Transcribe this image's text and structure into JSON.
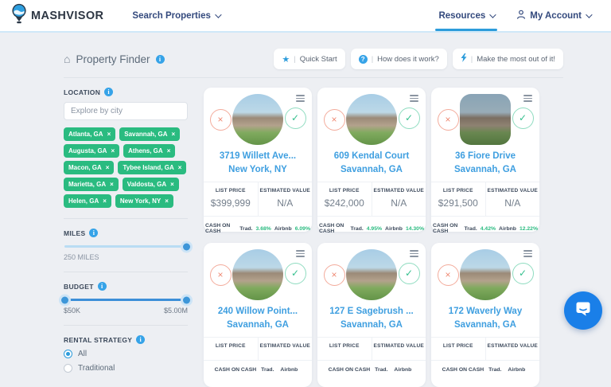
{
  "colors": {
    "accent_blue": "#2d9cdb",
    "tag_green": "#2abb80",
    "coral": "#ef8a74",
    "nav_navy": "#33497d"
  },
  "navbar": {
    "brand": "MASHVISOR",
    "search_properties": "Search Properties",
    "resources": "Resources",
    "my_account": "My Account"
  },
  "header": {
    "title": "Property Finder",
    "actions": [
      {
        "label": "Quick Start",
        "icon": "star-icon"
      },
      {
        "label": "How does it work?",
        "icon": "question-icon"
      },
      {
        "label": "Make the most out of it!",
        "icon": "lightning-icon"
      }
    ]
  },
  "filters": {
    "location": {
      "label": "LOCATION",
      "placeholder": "Explore by city",
      "tags": [
        "Atlanta, GA",
        "Savannah, GA",
        "Augusta, GA",
        "Athens, GA",
        "Macon, GA",
        "Tybee Island, GA",
        "Marietta, GA",
        "Valdosta, GA",
        "Helen, GA",
        "New York, NY"
      ]
    },
    "miles": {
      "label": "MILES",
      "value": "250 MILES"
    },
    "budget": {
      "label": "BUDGET",
      "min": "$50K",
      "max": "$5.00M"
    },
    "rental_strategy": {
      "label": "RENTAL STRATEGY",
      "options": [
        "All",
        "Traditional"
      ],
      "selected": "All"
    }
  },
  "card_labels": {
    "list_price": "LIST PRICE",
    "estimated_value": "ESTIMATED VALUE",
    "cash_on_cash": "CASH ON CASH",
    "trad": "Trad.",
    "airbnb": "Airbnb"
  },
  "cards": [
    {
      "address": "3719 Willett Ave...",
      "city": "New York, NY",
      "list_price": "$399,999",
      "estimated_value": "N/A",
      "trad_coc": "3.68%",
      "airbnb_coc": "6.09%"
    },
    {
      "address": "609 Kendal Court",
      "city": "Savannah, GA",
      "list_price": "$242,000",
      "estimated_value": "N/A",
      "trad_coc": "4.95%",
      "airbnb_coc": "14.30%"
    },
    {
      "address": "36 Fiore Drive",
      "city": "Savannah, GA",
      "list_price": "$291,500",
      "estimated_value": "N/A",
      "trad_coc": "4.42%",
      "airbnb_coc": "12.22%"
    },
    {
      "address": "240 Willow Point...",
      "city": "Savannah, GA",
      "list_price": "",
      "estimated_value": "",
      "trad_coc": "",
      "airbnb_coc": ""
    },
    {
      "address": "127 E Sagebrush ...",
      "city": "Savannah, GA",
      "list_price": "",
      "estimated_value": "",
      "trad_coc": "",
      "airbnb_coc": ""
    },
    {
      "address": "172 Waverly Way",
      "city": "Savannah, GA",
      "list_price": "",
      "estimated_value": "",
      "trad_coc": "",
      "airbnb_coc": ""
    }
  ]
}
